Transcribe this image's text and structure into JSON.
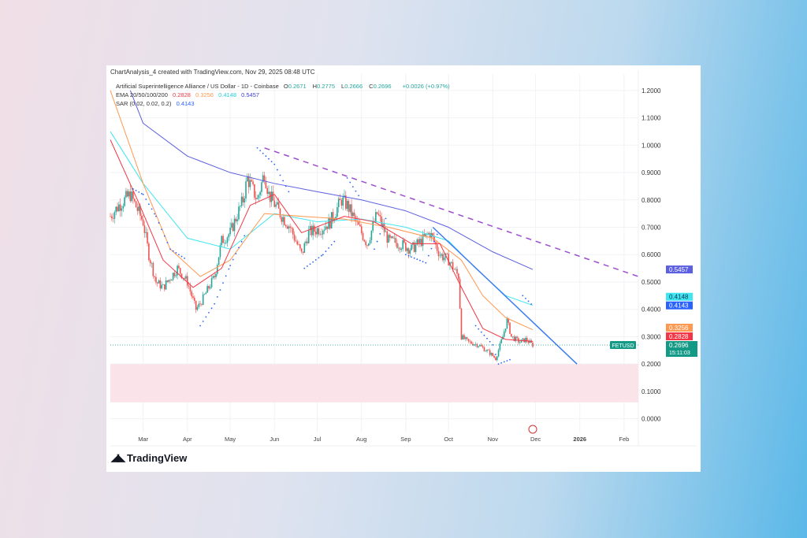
{
  "header": "ChartAnalysis_4 created with TradingView.com, Nov 29, 2025 08:48 UTC",
  "legend": {
    "symbol": "Artificial Superintelligence Alliance / US Dollar - 1D - Coinbase",
    "ohlc": [
      {
        "k": "O",
        "v": "0.2671"
      },
      {
        "k": "H",
        "v": "0.2775"
      },
      {
        "k": "L",
        "v": "0.2666"
      },
      {
        "k": "C",
        "v": "0.2696"
      }
    ],
    "change": "+0.0026 (+0.97%)",
    "ema_label": "EMA 20/50/100/200",
    "ema_values": [
      "0.2828",
      "0.3256",
      "0.4148",
      "0.5457"
    ],
    "sar_label": "SAR (0.02, 0.02, 0.2)",
    "sar_value": "0.4143"
  },
  "brand": "TradingView",
  "colors": {
    "up": "#26a69a",
    "down": "#ef5350",
    "ema20": "#f23645",
    "ema50": "#ff9850",
    "ema100": "#3ee6f0",
    "ema200": "#5b5fe0",
    "sar": "#2962ff",
    "resistance": "#9c4dcc",
    "trend": "#3d7cf0",
    "zone": "#fbe3ea",
    "ticker_bg": "#139a86"
  },
  "chart_data": {
    "type": "candlestick",
    "title": "Artificial Superintelligence Alliance / US Dollar - 1D - Coinbase",
    "xlim": [
      "2025-02-06",
      "2026-02-11"
    ],
    "ylim": [
      -0.05,
      1.26
    ],
    "y_ticks": [
      "0.0000",
      "0.1000",
      "0.2000",
      "0.3000",
      "0.4000",
      "0.5000",
      "0.6000",
      "0.7000",
      "0.8000",
      "0.9000",
      "1.0000",
      "1.1000",
      "1.2000"
    ],
    "x_ticks": [
      {
        "d": "2025-03-01",
        "l": "Mar"
      },
      {
        "d": "2025-04-01",
        "l": "Apr"
      },
      {
        "d": "2025-05-01",
        "l": "May"
      },
      {
        "d": "2025-06-01",
        "l": "Jun"
      },
      {
        "d": "2025-07-01",
        "l": "Jul"
      },
      {
        "d": "2025-08-01",
        "l": "Aug"
      },
      {
        "d": "2025-09-01",
        "l": "Sep"
      },
      {
        "d": "2025-10-01",
        "l": "Oct"
      },
      {
        "d": "2025-11-01",
        "l": "Nov"
      },
      {
        "d": "2025-12-01",
        "l": "Dec"
      },
      {
        "d": "2026-01-01",
        "l": "2026",
        "bold": true
      },
      {
        "d": "2026-02-01",
        "l": "Feb"
      }
    ],
    "price_path": [
      [
        "2025-02-06",
        0.74
      ],
      [
        "2025-02-12",
        0.78
      ],
      [
        "2025-02-20",
        0.82
      ],
      [
        "2025-03-01",
        0.72
      ],
      [
        "2025-03-05",
        0.6
      ],
      [
        "2025-03-10",
        0.5
      ],
      [
        "2025-03-15",
        0.48
      ],
      [
        "2025-03-25",
        0.55
      ],
      [
        "2025-04-01",
        0.5
      ],
      [
        "2025-04-07",
        0.4
      ],
      [
        "2025-04-10",
        0.42
      ],
      [
        "2025-04-20",
        0.52
      ],
      [
        "2025-04-25",
        0.65
      ],
      [
        "2025-05-01",
        0.68
      ],
      [
        "2025-05-10",
        0.8
      ],
      [
        "2025-05-13",
        0.88
      ],
      [
        "2025-05-20",
        0.8
      ],
      [
        "2025-05-25",
        0.9
      ],
      [
        "2025-05-28",
        0.82
      ],
      [
        "2025-06-05",
        0.75
      ],
      [
        "2025-06-12",
        0.7
      ],
      [
        "2025-06-20",
        0.6
      ],
      [
        "2025-06-25",
        0.68
      ],
      [
        "2025-07-05",
        0.7
      ],
      [
        "2025-07-10",
        0.72
      ],
      [
        "2025-07-18",
        0.8
      ],
      [
        "2025-07-22",
        0.78
      ],
      [
        "2025-07-30",
        0.7
      ],
      [
        "2025-08-05",
        0.64
      ],
      [
        "2025-08-12",
        0.75
      ],
      [
        "2025-08-20",
        0.65
      ],
      [
        "2025-08-28",
        0.64
      ],
      [
        "2025-09-05",
        0.62
      ],
      [
        "2025-09-12",
        0.65
      ],
      [
        "2025-09-18",
        0.68
      ],
      [
        "2025-09-25",
        0.6
      ],
      [
        "2025-10-01",
        0.58
      ],
      [
        "2025-10-08",
        0.52
      ],
      [
        "2025-10-10",
        0.3
      ],
      [
        "2025-10-15",
        0.28
      ],
      [
        "2025-10-22",
        0.27
      ],
      [
        "2025-10-30",
        0.24
      ],
      [
        "2025-11-03",
        0.22
      ],
      [
        "2025-11-08",
        0.3
      ],
      [
        "2025-11-11",
        0.36
      ],
      [
        "2025-11-14",
        0.3
      ],
      [
        "2025-11-20",
        0.28
      ],
      [
        "2025-11-24",
        0.29
      ],
      [
        "2025-11-29",
        0.2696
      ]
    ],
    "series": [
      {
        "name": "EMA 200",
        "color_key": "ema200",
        "points": [
          [
            "2025-02-20",
            1.2
          ],
          [
            "2025-03-01",
            1.08
          ],
          [
            "2025-04-01",
            0.96
          ],
          [
            "2025-05-01",
            0.9
          ],
          [
            "2025-06-01",
            0.86
          ],
          [
            "2025-07-01",
            0.83
          ],
          [
            "2025-08-01",
            0.8
          ],
          [
            "2025-09-01",
            0.76
          ],
          [
            "2025-10-01",
            0.7
          ],
          [
            "2025-11-01",
            0.61
          ],
          [
            "2025-11-29",
            0.5457
          ]
        ]
      },
      {
        "name": "EMA 100",
        "color_key": "ema100",
        "points": [
          [
            "2025-02-06",
            1.05
          ],
          [
            "2025-03-01",
            0.86
          ],
          [
            "2025-04-01",
            0.66
          ],
          [
            "2025-05-01",
            0.62
          ],
          [
            "2025-06-01",
            0.75
          ],
          [
            "2025-07-01",
            0.72
          ],
          [
            "2025-08-01",
            0.73
          ],
          [
            "2025-09-01",
            0.7
          ],
          [
            "2025-10-01",
            0.65
          ],
          [
            "2025-10-20",
            0.55
          ],
          [
            "2025-11-10",
            0.45
          ],
          [
            "2025-11-29",
            0.4148
          ]
        ]
      },
      {
        "name": "EMA 50",
        "color_key": "ema50",
        "points": [
          [
            "2025-02-06",
            1.2
          ],
          [
            "2025-03-01",
            0.86
          ],
          [
            "2025-03-20",
            0.62
          ],
          [
            "2025-04-10",
            0.52
          ],
          [
            "2025-05-01",
            0.58
          ],
          [
            "2025-05-25",
            0.75
          ],
          [
            "2025-06-20",
            0.74
          ],
          [
            "2025-07-20",
            0.73
          ],
          [
            "2025-08-20",
            0.7
          ],
          [
            "2025-09-20",
            0.66
          ],
          [
            "2025-10-10",
            0.58
          ],
          [
            "2025-10-25",
            0.45
          ],
          [
            "2025-11-10",
            0.37
          ],
          [
            "2025-11-29",
            0.3256
          ]
        ]
      },
      {
        "name": "EMA 20",
        "color_key": "ema20",
        "points": [
          [
            "2025-02-06",
            1.02
          ],
          [
            "2025-02-25",
            0.8
          ],
          [
            "2025-03-15",
            0.58
          ],
          [
            "2025-04-05",
            0.48
          ],
          [
            "2025-04-25",
            0.55
          ],
          [
            "2025-05-15",
            0.78
          ],
          [
            "2025-06-01",
            0.82
          ],
          [
            "2025-06-20",
            0.68
          ],
          [
            "2025-07-20",
            0.74
          ],
          [
            "2025-08-10",
            0.72
          ],
          [
            "2025-09-05",
            0.64
          ],
          [
            "2025-09-25",
            0.64
          ],
          [
            "2025-10-10",
            0.48
          ],
          [
            "2025-10-25",
            0.33
          ],
          [
            "2025-11-10",
            0.29
          ],
          [
            "2025-11-29",
            0.2828
          ]
        ]
      }
    ],
    "sar": [
      [
        "2025-02-15",
        0.68
      ],
      [
        "2025-02-22",
        0.84
      ],
      [
        "2025-03-01",
        0.82
      ],
      [
        "2025-03-10",
        0.74
      ],
      [
        "2025-03-20",
        0.62
      ],
      [
        "2025-04-01",
        0.58
      ],
      [
        "2025-04-10",
        0.34
      ],
      [
        "2025-04-20",
        0.42
      ],
      [
        "2025-05-01",
        0.56
      ],
      [
        "2025-05-12",
        0.68
      ],
      [
        "2025-05-20",
        0.99
      ],
      [
        "2025-06-01",
        0.93
      ],
      [
        "2025-06-12",
        0.82
      ],
      [
        "2025-06-22",
        0.55
      ],
      [
        "2025-07-05",
        0.6
      ],
      [
        "2025-07-15",
        0.66
      ],
      [
        "2025-07-22",
        0.88
      ],
      [
        "2025-08-01",
        0.8
      ],
      [
        "2025-08-10",
        0.62
      ],
      [
        "2025-08-20",
        0.76
      ],
      [
        "2025-09-01",
        0.6
      ],
      [
        "2025-09-15",
        0.57
      ],
      [
        "2025-09-25",
        0.7
      ],
      [
        "2025-10-10",
        0.52
      ],
      [
        "2025-10-20",
        0.34
      ],
      [
        "2025-11-01",
        0.27
      ],
      [
        "2025-11-05",
        0.2
      ],
      [
        "2025-11-15",
        0.22
      ],
      [
        "2025-11-22",
        0.45
      ],
      [
        "2025-11-29",
        0.4143
      ]
    ],
    "trendlines": [
      {
        "style": "dashed",
        "color_key": "resistance",
        "from": [
          "2025-05-25",
          0.99
        ],
        "to": [
          "2026-02-11",
          0.52
        ]
      },
      {
        "style": "solid",
        "color_key": "trend",
        "from": [
          "2025-09-20",
          0.7
        ],
        "to": [
          "2025-12-30",
          0.2
        ]
      }
    ],
    "zone": {
      "from": 0.06,
      "to": 0.2,
      "color_key": "zone"
    },
    "current_price_line": 0.2696,
    "price_labels": [
      {
        "text": "0.5457",
        "value": 0.5457,
        "color_key": "ema200"
      },
      {
        "text": "0.4148",
        "value": 0.4148,
        "color_key": "ema100"
      },
      {
        "text": "0.4143",
        "value": 0.4143,
        "color_key": "sar"
      },
      {
        "text": "0.3256",
        "value": 0.3256,
        "color_key": "ema50"
      },
      {
        "text": "0.2828",
        "value": 0.2828,
        "color_key": "ema20"
      },
      {
        "text": "0.2696",
        "value": 0.2696,
        "color_key": "ticker_bg",
        "ticker": "FETUSD",
        "countdown": "15:11:03"
      }
    ]
  }
}
